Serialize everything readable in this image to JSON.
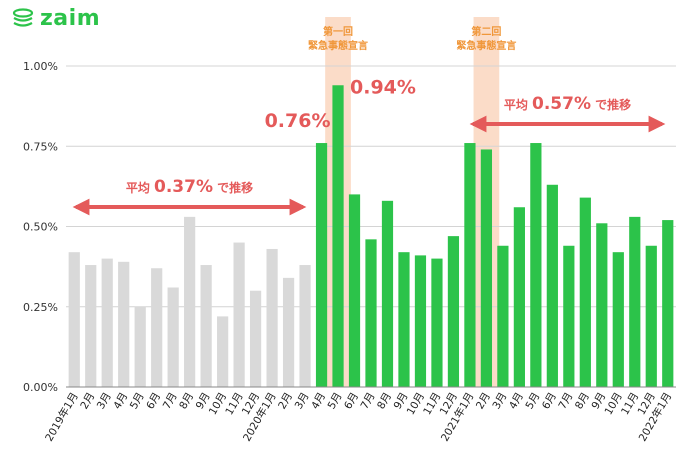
{
  "brand": {
    "name": "zaim",
    "color": "#2cc34a",
    "icon": "coin-stack-icon"
  },
  "chart_data": {
    "type": "bar",
    "title": "",
    "xlabel": "",
    "ylabel": "",
    "ylim": [
      0,
      1.0
    ],
    "yticks": [
      {
        "value": 0.0,
        "label": "0.00%"
      },
      {
        "value": 0.25,
        "label": "0.25%"
      },
      {
        "value": 0.5,
        "label": "0.50%"
      },
      {
        "value": 0.75,
        "label": "0.75%"
      },
      {
        "value": 1.0,
        "label": "1.00%"
      }
    ],
    "grid": true,
    "categories": [
      "2019年1月",
      "2月",
      "3月",
      "4月",
      "5月",
      "6月",
      "7月",
      "8月",
      "9月",
      "10月",
      "11月",
      "12月",
      "2020年1月",
      "2月",
      "3月",
      "4月",
      "5月",
      "6月",
      "7月",
      "8月",
      "9月",
      "10月",
      "11月",
      "12月",
      "2021年1月",
      "2月",
      "3月",
      "4月",
      "5月",
      "6月",
      "7月",
      "8月",
      "9月",
      "10月",
      "11月",
      "12月",
      "2022年1月"
    ],
    "values": [
      0.42,
      0.38,
      0.4,
      0.39,
      0.25,
      0.37,
      0.31,
      0.53,
      0.38,
      0.22,
      0.45,
      0.3,
      0.43,
      0.34,
      0.38,
      0.76,
      0.94,
      0.6,
      0.46,
      0.58,
      0.42,
      0.41,
      0.4,
      0.47,
      0.76,
      0.74,
      0.44,
      0.56,
      0.76,
      0.63,
      0.44,
      0.59,
      0.51,
      0.42,
      0.53,
      0.44,
      0.52
    ],
    "colors": {
      "before": "#d9d9d9",
      "after": "#2cc34a",
      "split_index": 15
    },
    "highlights": [
      {
        "index": 16,
        "label_lines": [
          "第一回",
          "緊急事態宣言"
        ]
      },
      {
        "index": 25,
        "label_lines": [
          "第二回",
          "緊急事態宣言"
        ]
      }
    ],
    "data_labels": [
      {
        "index": 15,
        "text": "0.76%"
      },
      {
        "index": 16,
        "text": "0.94%"
      }
    ],
    "averages": [
      {
        "from": 0,
        "to": 14,
        "prefix": "平均",
        "value_text": "0.37%",
        "suffix": "で推移",
        "value": 0.37
      },
      {
        "from": 24,
        "to": 36,
        "prefix": "平均",
        "value_text": "0.57%",
        "suffix": "で推移",
        "value": 0.57
      }
    ],
    "annotation_color": "#e45a5a",
    "highlight_band_color": "#fbdcc8",
    "highlight_label_color": "#f0973a"
  }
}
